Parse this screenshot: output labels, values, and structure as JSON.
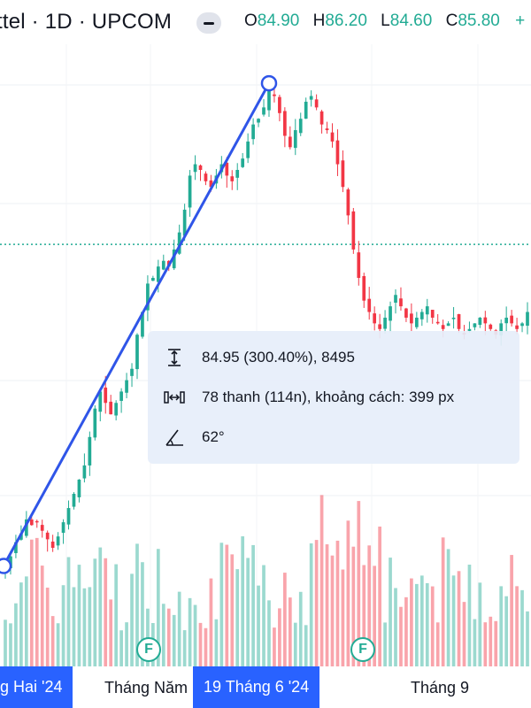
{
  "header": {
    "title": "ttel · 1D · UPCOM",
    "ohlc": [
      {
        "key": "O",
        "value": "84.90"
      },
      {
        "key": "H",
        "value": "86.20"
      },
      {
        "key": "L",
        "value": "84.60"
      },
      {
        "key": "C",
        "value": "85.80"
      }
    ],
    "more_sign": "+"
  },
  "measure": {
    "price_change": "84.95 (300.40%), 8495",
    "bars": "78 thanh (114n), khoảng cách: 399 px",
    "angle": "62°"
  },
  "x_axis": {
    "labels": [
      "g Hai '24",
      "Tháng Năm",
      "19 Tháng 6 '24",
      "Tháng 9"
    ],
    "selected": [
      "g Hai '24",
      "19 Tháng 6 '24"
    ]
  },
  "markers": [
    "F",
    "F"
  ],
  "colors": {
    "up": "#22ab94",
    "down": "#f23645",
    "accent": "#2962ff",
    "trendline": "#2f55e8"
  },
  "chart_data": {
    "type": "candlestick",
    "title": "",
    "price_line": 84.9,
    "trend": {
      "start_price": 28.3,
      "end_price": 113.25
    },
    "closes": [
      28.3,
      30,
      32.5,
      34,
      36.5,
      35.5,
      36,
      34.5,
      33,
      31.5,
      33.5,
      36,
      38.5,
      41,
      43.5,
      46,
      51,
      56,
      59,
      57,
      55,
      57,
      59,
      61,
      63,
      69,
      73,
      78,
      79,
      81,
      82,
      81,
      84,
      87,
      91,
      97,
      99,
      98,
      96,
      95,
      97,
      99,
      97,
      96,
      98,
      100,
      103,
      106,
      107,
      109,
      112,
      111,
      108,
      104,
      102,
      105,
      107,
      110,
      111,
      109,
      106,
      105,
      103,
      99,
      95,
      90,
      84,
      79,
      75,
      73,
      71,
      70,
      72,
      74,
      76,
      74,
      72,
      71,
      72,
      73,
      74,
      72,
      71,
      70,
      71,
      72,
      70,
      69,
      70,
      71,
      72,
      71,
      70,
      69,
      71,
      72,
      71,
      70,
      71,
      73
    ]
  }
}
